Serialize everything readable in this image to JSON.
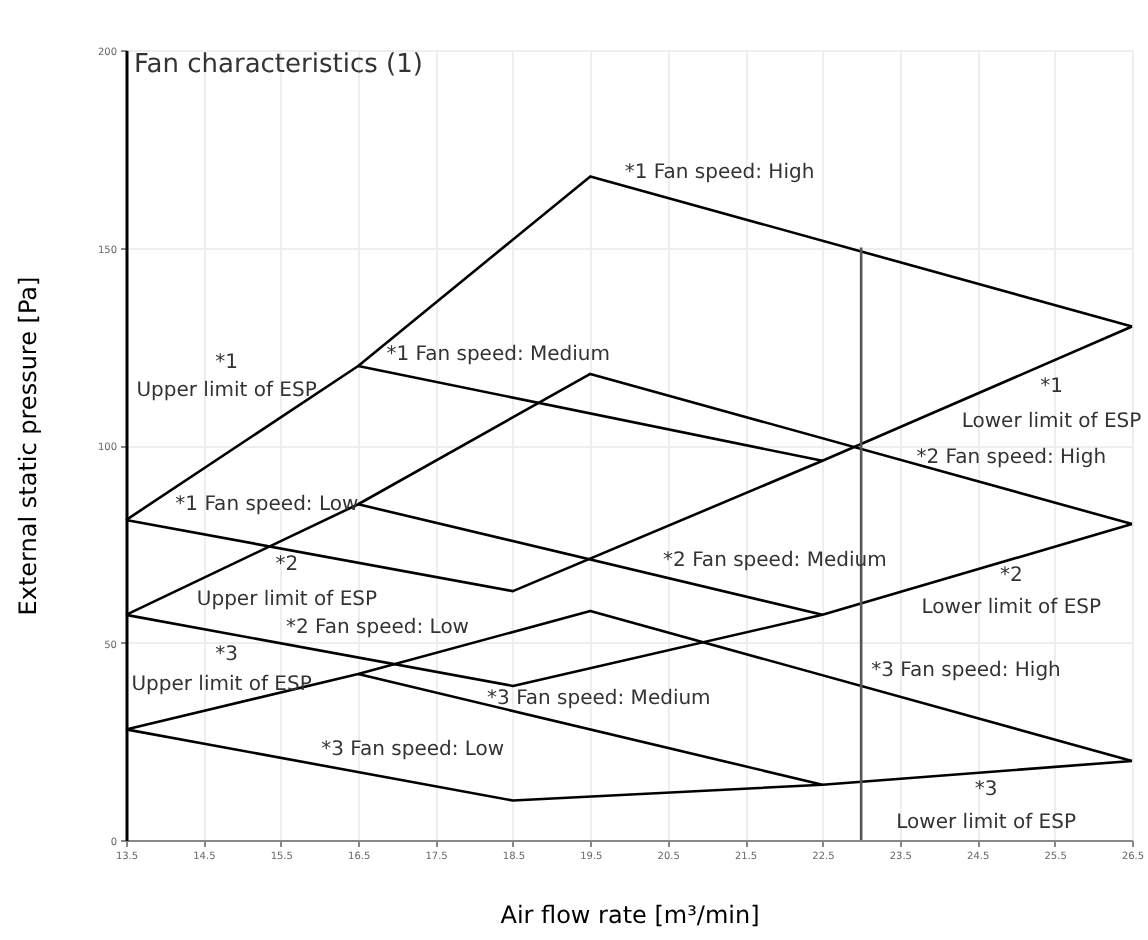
{
  "chart_data": {
    "type": "line",
    "title": "Fan characteristics (1)",
    "xlabel": "Air flow rate [m³/min]",
    "ylabel": "External static pressure [Pa]",
    "xlim": [
      13.5,
      26.5
    ],
    "xticks": [
      13.5,
      14.5,
      15.5,
      16.5,
      17.5,
      18.5,
      19.5,
      20.5,
      21.5,
      22.5,
      23.5,
      24.5,
      25.5,
      26.5
    ],
    "ylim": [
      0,
      200
    ],
    "yticks": [
      0,
      50,
      100,
      150,
      200
    ],
    "grid": true,
    "marker": "none",
    "line_style": "solid",
    "series": [
      {
        "color": "#000000",
        "x": [
          13.5,
          16.5,
          19.5,
          26.5
        ],
        "values": [
          81,
          120,
          168,
          130
        ]
      },
      {
        "color": "#000000",
        "x": [
          16.5,
          22.5
        ],
        "values": [
          120,
          96
        ]
      },
      {
        "color": "#000000",
        "x": [
          13.5,
          18.5,
          22.5,
          26.5
        ],
        "values": [
          81,
          63,
          96,
          130
        ]
      },
      {
        "color": "#000000",
        "x": [
          13.5,
          16.5,
          19.5,
          26.5
        ],
        "values": [
          57,
          85,
          118,
          80
        ]
      },
      {
        "color": "#000000",
        "x": [
          16.5,
          22.5
        ],
        "values": [
          85,
          57
        ]
      },
      {
        "color": "#000000",
        "x": [
          13.5,
          18.5,
          22.5,
          26.5
        ],
        "values": [
          57,
          39,
          57,
          80
        ]
      },
      {
        "color": "#000000",
        "x": [
          13.5,
          16.5,
          19.5,
          26.5
        ],
        "values": [
          28,
          42,
          58,
          20
        ]
      },
      {
        "color": "#000000",
        "x": [
          16.5,
          22.5
        ],
        "values": [
          42,
          14
        ]
      },
      {
        "color": "#000000",
        "x": [
          13.5,
          18.5,
          22.5,
          26.5
        ],
        "values": [
          28,
          10,
          14,
          20
        ]
      },
      {
        "color": "#555555",
        "x": [
          23,
          23
        ],
        "values": [
          0,
          150
        ]
      }
    ],
    "annotations": [
      "*1",
      "Upper limit of ESP",
      "*1 Fan speed: Medium",
      "*1 Fan speed: High",
      "*1",
      "Lower limit of ESP",
      "*2 Fan speed: High",
      "*1 Fan speed: Low",
      "*2",
      "Upper limit of ESP",
      "*2 Fan speed: Low",
      "*3",
      "Upper limit of ESP",
      "*3 Fan speed: Medium",
      "*3 Fan speed: Low",
      "*2 Fan speed: Medium",
      "*2",
      "Lower limit of ESP",
      "*3 Fan speed: High",
      "*3",
      "Lower limit of ESP"
    ]
  }
}
